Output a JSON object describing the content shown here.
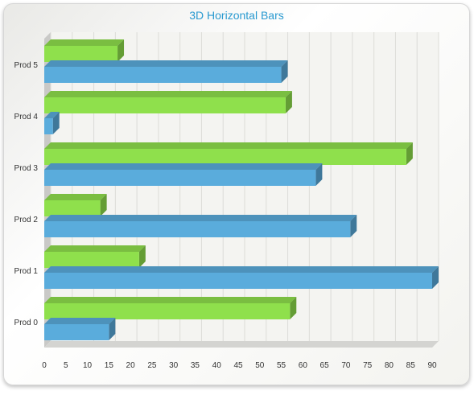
{
  "chart_data": {
    "type": "bar",
    "orientation": "horizontal",
    "style": "3d",
    "title": "3D Horizontal Bars",
    "xlabel": "",
    "ylabel": "",
    "categories": [
      "Prod 0",
      "Prod 1",
      "Prod 2",
      "Prod 3",
      "Prod 4",
      "Prod 5"
    ],
    "series": [
      {
        "values": [
          15,
          90,
          71,
          63,
          2,
          55
        ],
        "color": "#5aacdc"
      },
      {
        "values": [
          57,
          22,
          13,
          84,
          56,
          17
        ],
        "color": "#8fe04c"
      }
    ],
    "xlim": [
      0,
      90
    ],
    "x_ticks": [
      "0",
      "5",
      "10",
      "15",
      "20",
      "25",
      "30",
      "35",
      "40",
      "45",
      "50",
      "55",
      "60",
      "65",
      "70",
      "75",
      "80",
      "85",
      "90"
    ],
    "grid": true,
    "legend": "none"
  }
}
